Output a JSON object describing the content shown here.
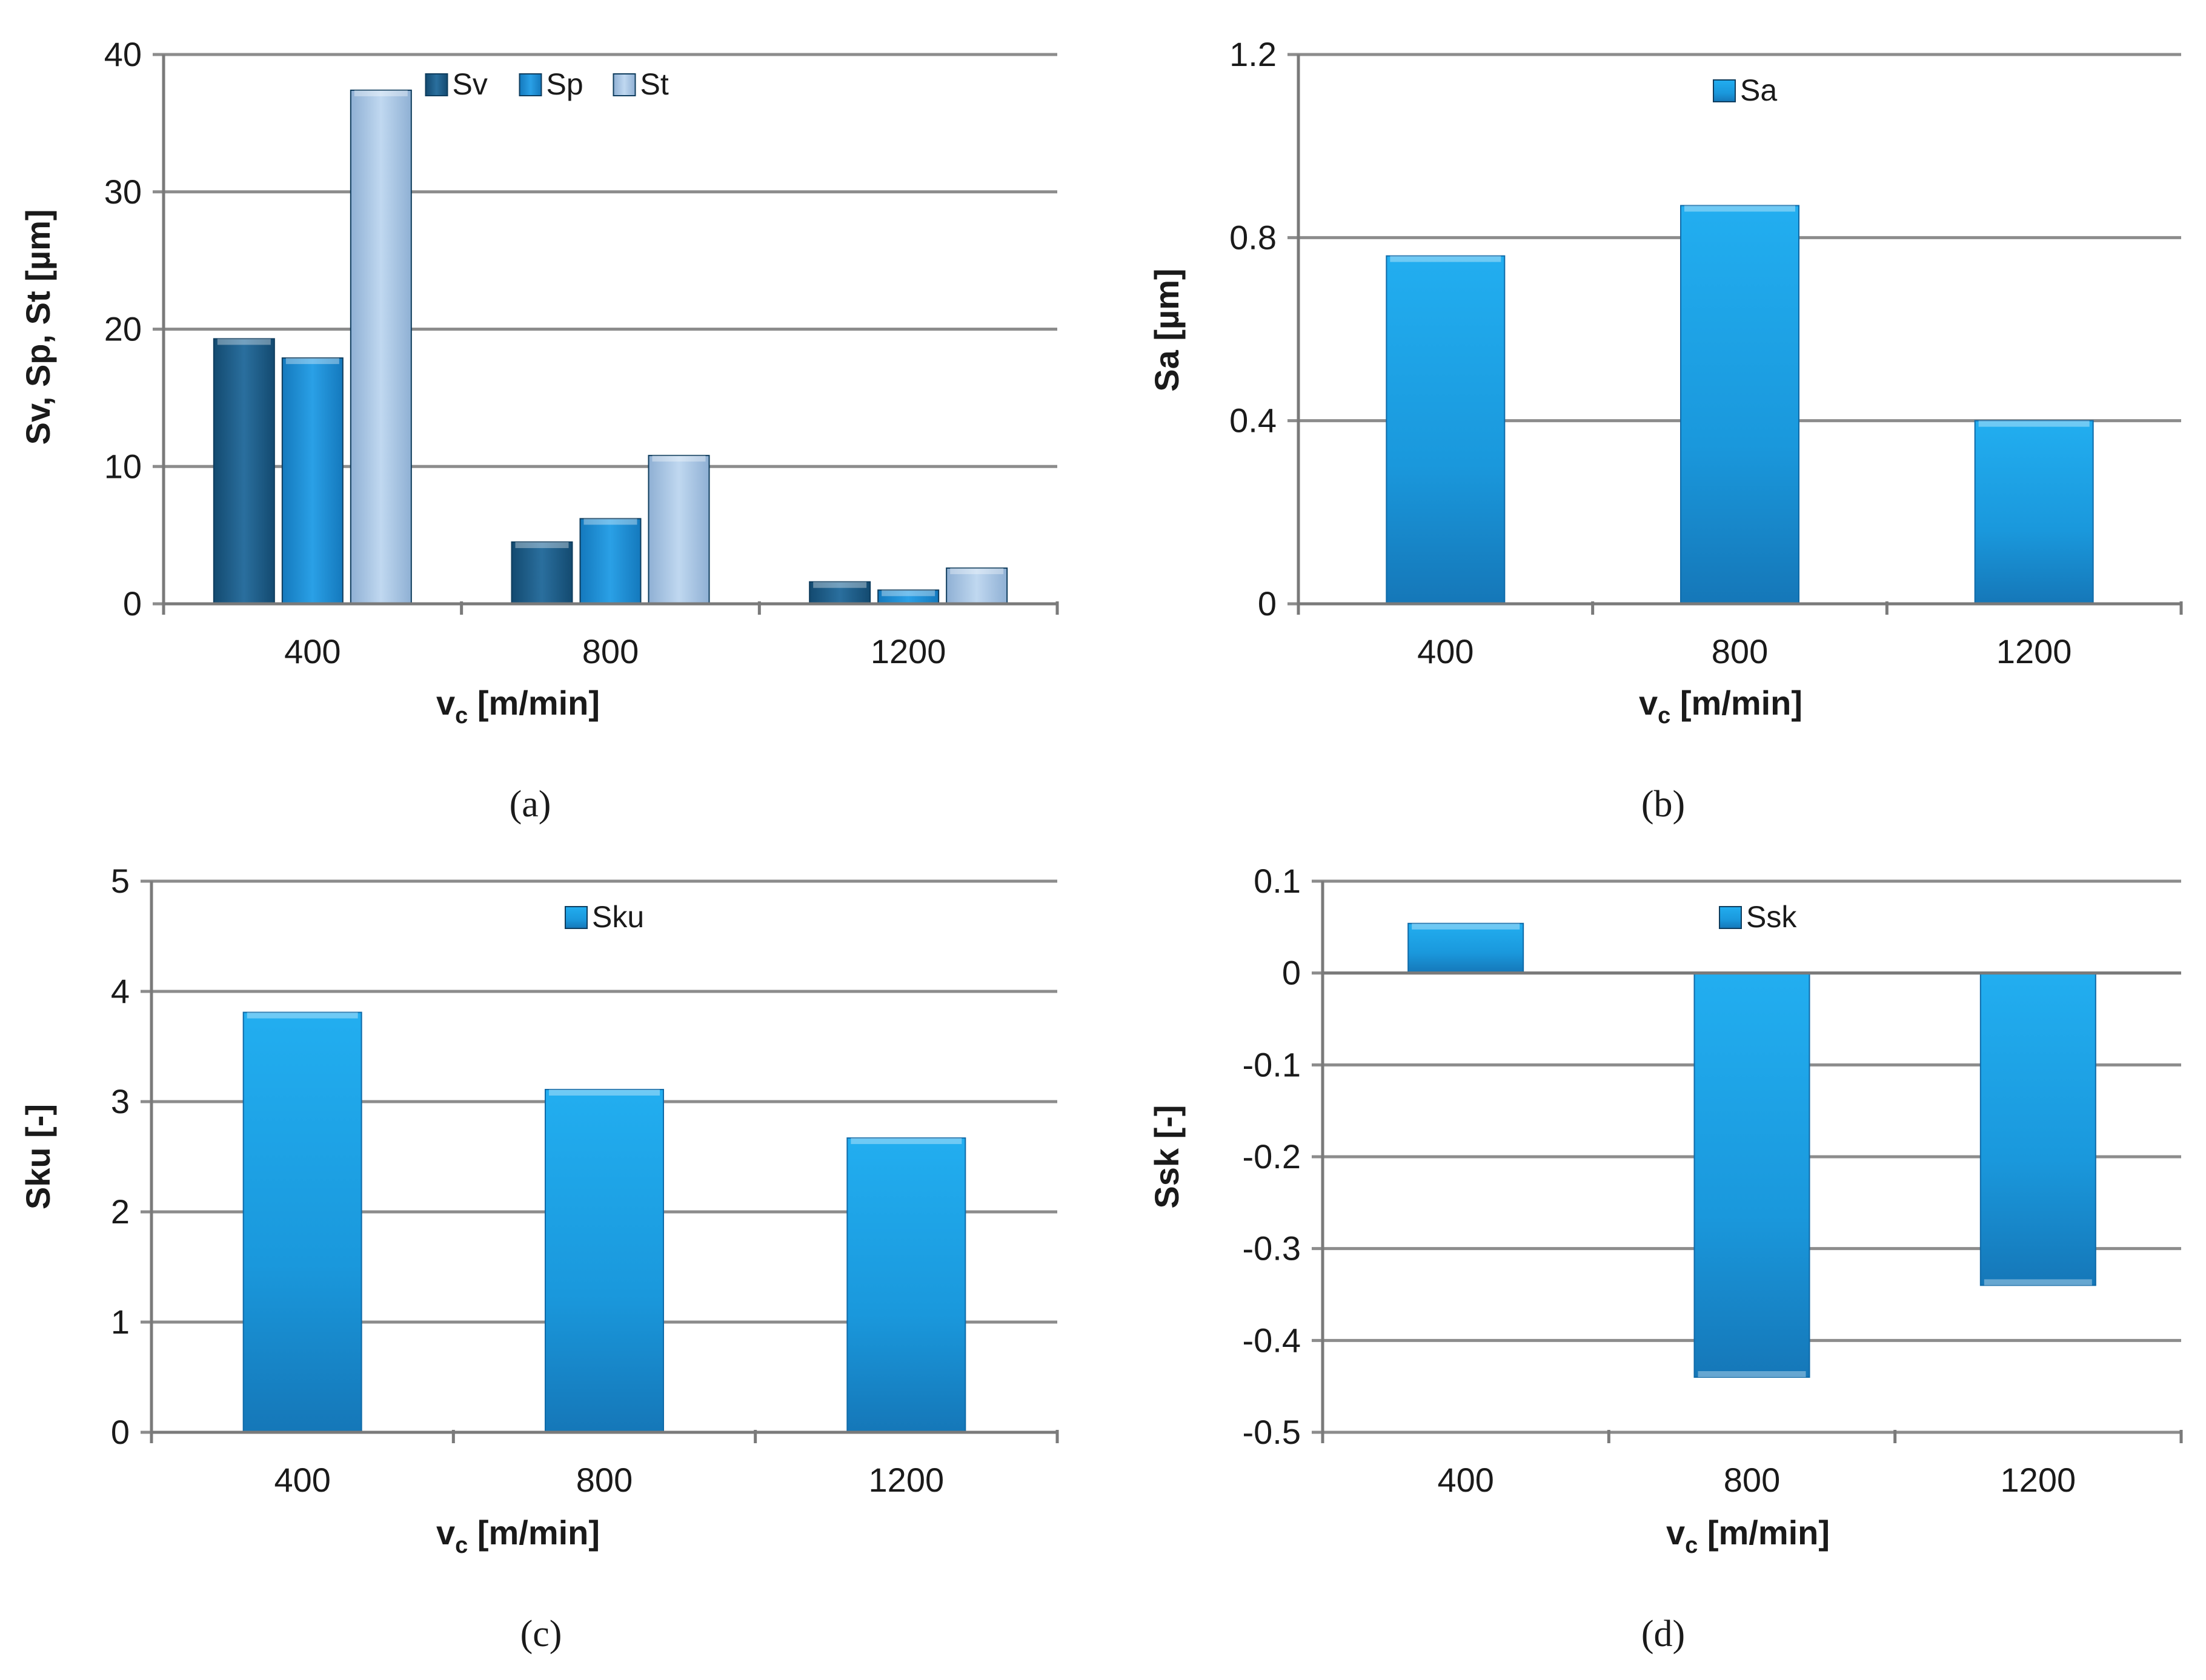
{
  "colors": {
    "Sv": "#1f5f8c",
    "Sp": "#1d8ed8",
    "St": "#a9c6e6",
    "single": "#1d9be0",
    "grid": "#808080",
    "text": "#1a1a1a"
  },
  "chart_data": [
    {
      "panel": "a",
      "type": "bar",
      "caption": "(a)",
      "categories": [
        "400",
        "800",
        "1200"
      ],
      "series": [
        {
          "name": "Sv",
          "values": [
            19.3,
            4.5,
            1.6
          ]
        },
        {
          "name": "Sp",
          "values": [
            17.9,
            6.2,
            1.0
          ]
        },
        {
          "name": "St",
          "values": [
            37.4,
            10.8,
            2.6
          ]
        }
      ],
      "ylabel": "Sv, Sp, St [µm]",
      "xlabel_main": "v",
      "xlabel_sub": "c",
      "xlabel_rest": " [m/min]",
      "ylim": [
        0,
        40
      ],
      "yticks": [
        0,
        10,
        20,
        30,
        40
      ],
      "ytick_labels": [
        "0",
        "10",
        "20",
        "30",
        "40"
      ],
      "legend": "top-center"
    },
    {
      "panel": "b",
      "type": "bar",
      "caption": "(b)",
      "categories": [
        "400",
        "800",
        "1200"
      ],
      "series": [
        {
          "name": "Sa",
          "values": [
            0.76,
            0.87,
            0.4
          ]
        }
      ],
      "ylabel": "Sa [µm]",
      "xlabel_main": "v",
      "xlabel_sub": "c",
      "xlabel_rest": " [m/min]",
      "ylim": [
        0,
        1.2
      ],
      "yticks": [
        0,
        0.4,
        0.8,
        1.2
      ],
      "ytick_labels": [
        "0",
        "0.4",
        "0.8",
        "1.2"
      ],
      "legend": "top-center"
    },
    {
      "panel": "c",
      "type": "bar",
      "caption": "(c)",
      "categories": [
        "400",
        "800",
        "1200"
      ],
      "series": [
        {
          "name": "Sku",
          "values": [
            3.81,
            3.11,
            2.67
          ]
        }
      ],
      "ylabel": "Sku [-]",
      "xlabel_main": "v",
      "xlabel_sub": "c",
      "xlabel_rest": " [m/min]",
      "ylim": [
        0,
        5
      ],
      "yticks": [
        0,
        1,
        2,
        3,
        4,
        5
      ],
      "ytick_labels": [
        "0",
        "1",
        "2",
        "3",
        "4",
        "5"
      ],
      "legend": "top-center"
    },
    {
      "panel": "d",
      "type": "bar",
      "caption": "(d)",
      "categories": [
        "400",
        "800",
        "1200"
      ],
      "series": [
        {
          "name": "Ssk",
          "values": [
            0.054,
            -0.44,
            -0.34
          ]
        }
      ],
      "ylabel": "Ssk [-]",
      "xlabel_main": "v",
      "xlabel_sub": "c",
      "xlabel_rest": " [m/min]",
      "ylim": [
        -0.5,
        0.1
      ],
      "yticks": [
        -0.5,
        -0.4,
        -0.3,
        -0.2,
        -0.1,
        0,
        0.1
      ],
      "ytick_labels": [
        "-0.5",
        "-0.4",
        "-0.3",
        "-0.2",
        "-0.1",
        "0",
        "0.1"
      ],
      "legend": "top-center"
    }
  ]
}
